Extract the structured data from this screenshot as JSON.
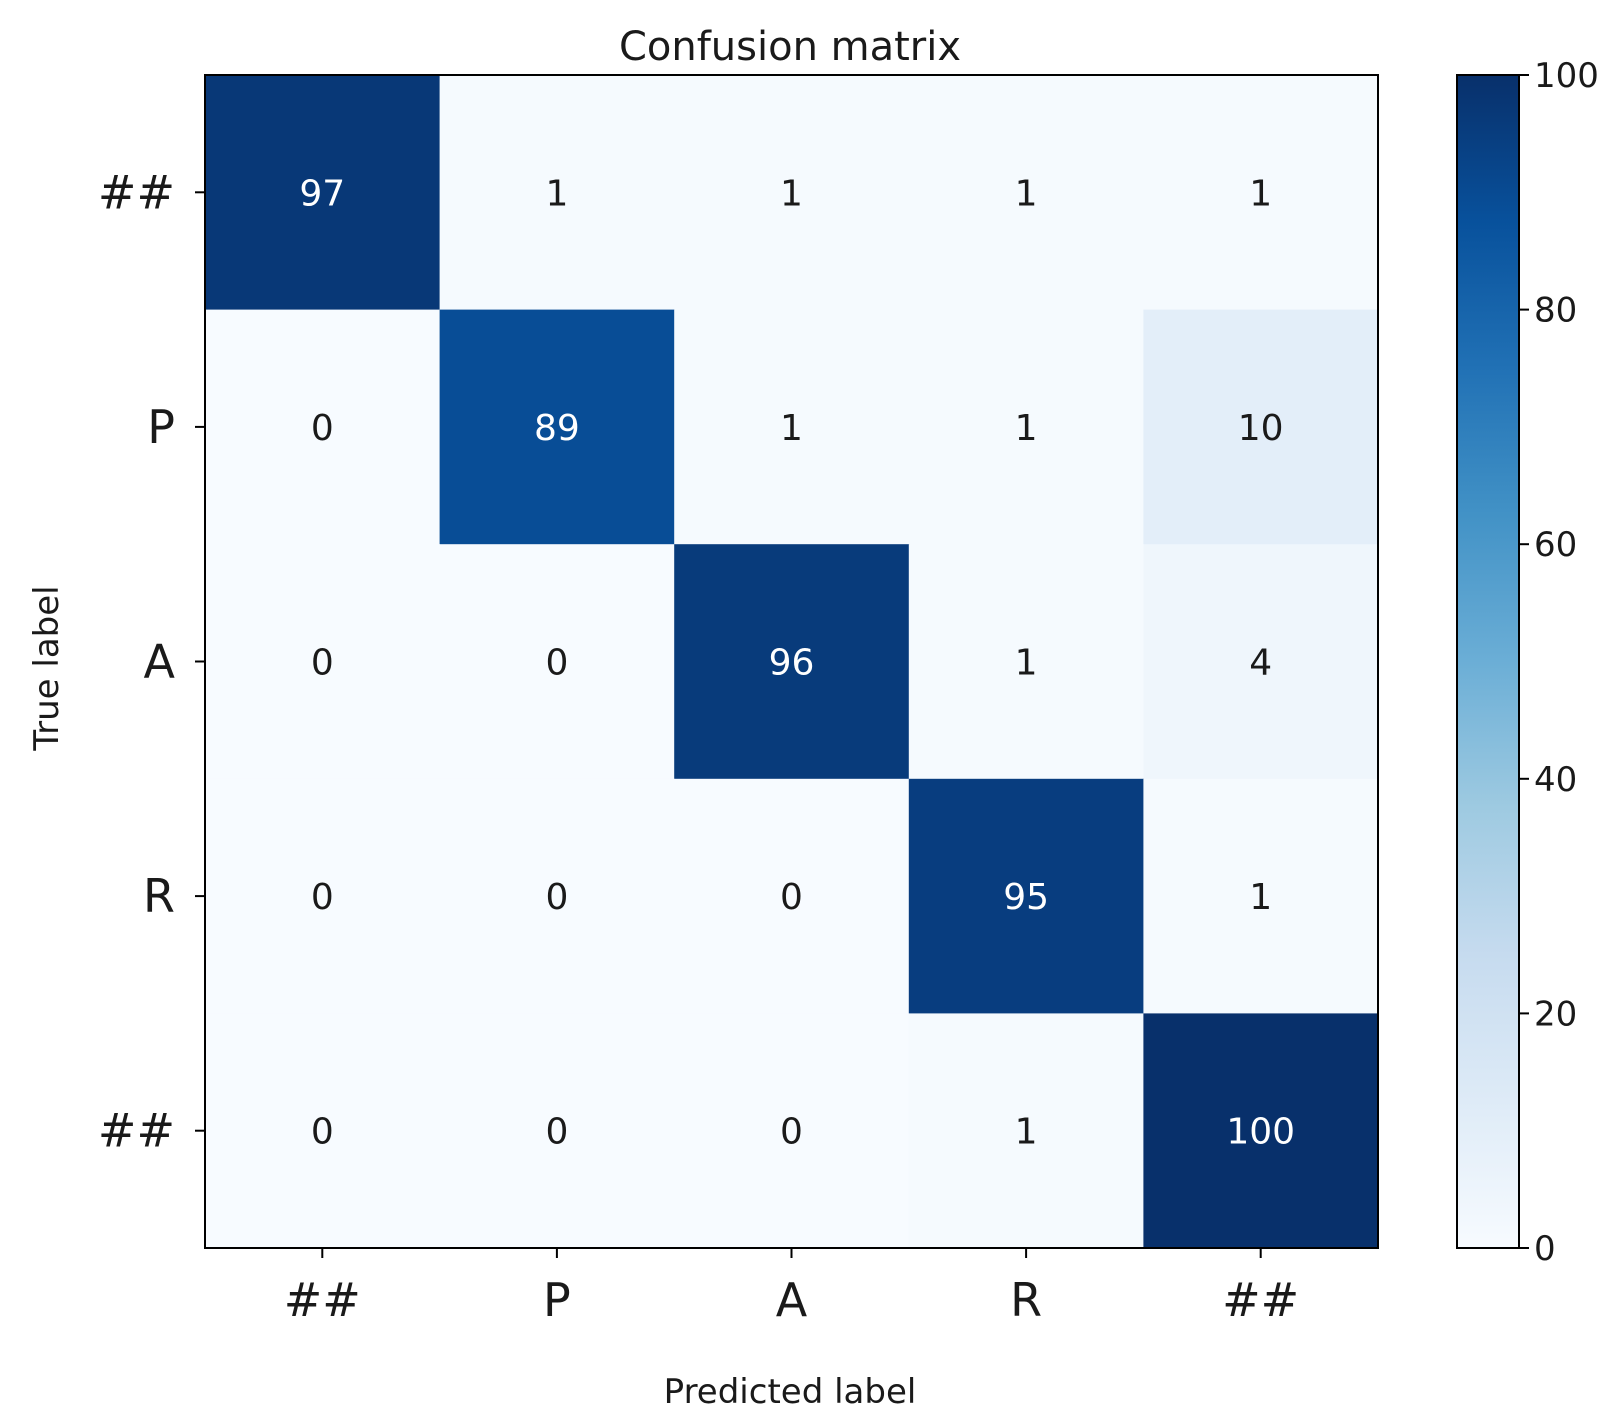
{
  "chart_data": {
    "type": "heatmap",
    "title": "Confusion matrix",
    "xlabel": "Predicted label",
    "ylabel": "True label",
    "x_categories": [
      "##",
      "P",
      "A",
      "R",
      "##"
    ],
    "y_categories": [
      "##",
      "P",
      "A",
      "R",
      "##"
    ],
    "values": [
      [
        97,
        1,
        1,
        1,
        1
      ],
      [
        0,
        89,
        1,
        1,
        10
      ],
      [
        0,
        0,
        96,
        1,
        4
      ],
      [
        0,
        0,
        0,
        95,
        1
      ],
      [
        0,
        0,
        0,
        1,
        100
      ]
    ],
    "colorbar": {
      "range": [
        0,
        100
      ],
      "ticks": [
        0,
        20,
        40,
        60,
        80,
        100
      ],
      "colormap": "Blues"
    },
    "grid": false
  }
}
